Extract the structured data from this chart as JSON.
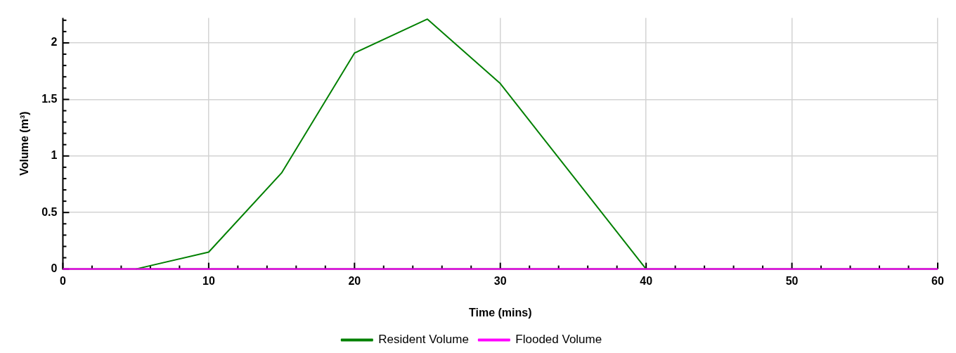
{
  "chart_data": {
    "type": "line",
    "xlabel": "Time (mins)",
    "ylabel": "Volume (m³)",
    "series": [
      {
        "name": "Resident Volume",
        "color": "#008000",
        "x": [
          5,
          10,
          15,
          20,
          25,
          30,
          40
        ],
        "values": [
          0,
          0.15,
          0.85,
          1.91,
          2.21,
          1.64,
          0
        ]
      },
      {
        "name": "Flooded Volume",
        "color": "#ff00ff",
        "x": [
          0,
          60
        ],
        "values": [
          0,
          0
        ]
      }
    ],
    "xlim": [
      0,
      60
    ],
    "ylim": [
      0,
      2.22
    ],
    "xticks": [
      0,
      {
        "value": 2,
        "label": null
      },
      {
        "value": 4,
        "label": null
      },
      {
        "value": 6,
        "label": null
      },
      {
        "value": 8,
        "label": null
      },
      10,
      {
        "value": 12,
        "label": null
      },
      {
        "value": 14,
        "label": null
      },
      {
        "value": 16,
        "label": null
      },
      {
        "value": 18,
        "label": null
      },
      20,
      {
        "value": 22,
        "label": null
      },
      {
        "value": 24,
        "label": null
      },
      {
        "value": 26,
        "label": null
      },
      {
        "value": 28,
        "label": null
      },
      30,
      {
        "value": 32,
        "label": null
      },
      {
        "value": 34,
        "label": null
      },
      {
        "value": 36,
        "label": null
      },
      {
        "value": 38,
        "label": null
      },
      40,
      {
        "value": 42,
        "label": null
      },
      {
        "value": 44,
        "label": null
      },
      {
        "value": 46,
        "label": null
      },
      {
        "value": 48,
        "label": null
      },
      50,
      {
        "value": 52,
        "label": null
      },
      {
        "value": 54,
        "label": null
      },
      {
        "value": 56,
        "label": null
      },
      {
        "value": 58,
        "label": null
      },
      60
    ],
    "yticks": [
      0,
      {
        "value": 0.1,
        "label": null
      },
      {
        "value": 0.2,
        "label": null
      },
      {
        "value": 0.3,
        "label": null
      },
      {
        "value": 0.4,
        "label": null
      },
      0.5,
      {
        "value": 0.6,
        "label": null
      },
      {
        "value": 0.7,
        "label": null
      },
      {
        "value": 0.8,
        "label": null
      },
      {
        "value": 0.9,
        "label": null
      },
      1,
      {
        "value": 1.1,
        "label": null
      },
      {
        "value": 1.2,
        "label": null
      },
      {
        "value": 1.3,
        "label": null
      },
      {
        "value": 1.4,
        "label": null
      },
      1.5,
      {
        "value": 1.6,
        "label": null
      },
      {
        "value": 1.7,
        "label": null
      },
      {
        "value": 1.8,
        "label": null
      },
      {
        "value": 1.9,
        "label": null
      },
      2,
      {
        "value": 2.1,
        "label": null
      },
      {
        "value": 2.2,
        "label": null
      }
    ],
    "grid": true,
    "legend": "bottom",
    "marker": "none",
    "line_style": "solid"
  }
}
